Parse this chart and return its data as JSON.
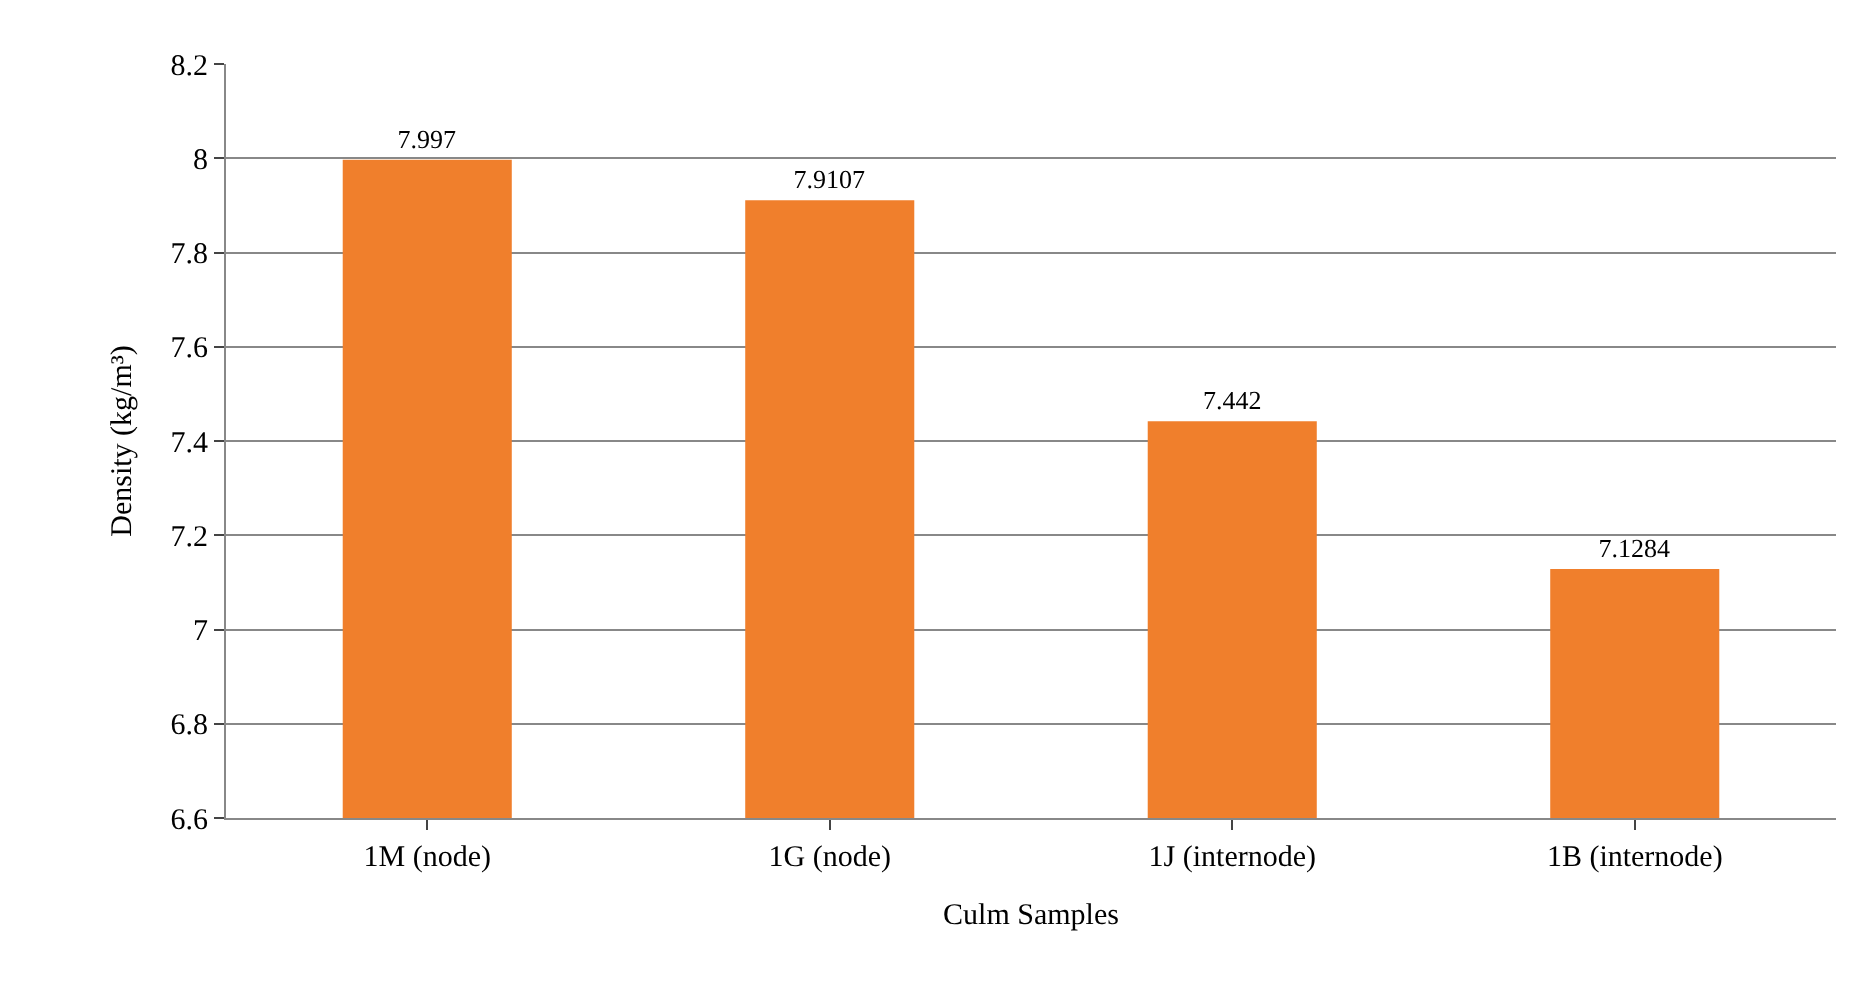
{
  "chart_data": {
    "type": "bar",
    "xlabel": "Culm Samples",
    "ylabel": "Density (kg/m³)",
    "categories": [
      "1M (node)",
      "1G (node)",
      "1J (internode)",
      "1B (internode)"
    ],
    "values": [
      7.997,
      7.9107,
      7.442,
      7.1284
    ],
    "color": "#f07f2c",
    "ylim": [
      6.6,
      8.2
    ],
    "yticks": [
      6.6,
      6.8,
      7,
      7.2,
      7.4,
      7.6,
      7.8,
      8,
      8.2
    ],
    "grid": "y",
    "data_labels": true
  }
}
